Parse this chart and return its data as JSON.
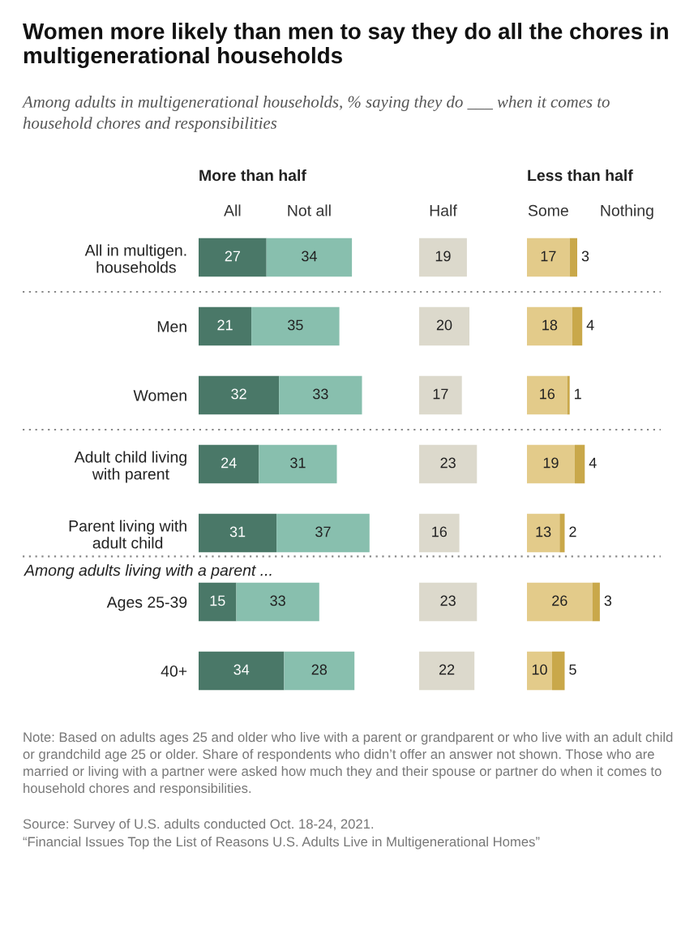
{
  "chart_data": [
    {
      "type": "bar",
      "orientation": "horizontal",
      "stacked": true,
      "data_labels": true,
      "tick_labels": "y",
      "title": "Women more likely than men to say they do all the chores in multigenerational households",
      "subtitle": "Among adults in multigenerational households, % saying they do ___ when it comes to household chores and responsibilities",
      "legend_title": "More than half",
      "categories": [
        "All in multigen.\nhouseholds",
        "Men",
        "Women",
        "Adult child living\nwith parent",
        "Parent living with\nadult child",
        "Ages 25-39",
        "40+"
      ],
      "series": [
        {
          "name": "All",
          "color": "#4a7868",
          "values": [
            27,
            21,
            32,
            24,
            31,
            15,
            34
          ]
        },
        {
          "name": "Not all",
          "color": "#88bfae",
          "values": [
            34,
            35,
            33,
            31,
            37,
            33,
            28
          ]
        }
      ],
      "annotations": [
        "Among adults living with a parent ...",
        "Note: Based on adults ages 25 and older who live with a parent or grandparent or who live with an adult child or grandchild age 25 or older. Share of respondents who didn’t offer an answer not shown. Those who are married or living with a partner were asked how much they and their spouse or partner do when it comes to household chores and responsibilities.",
        "Source: Survey of U.S. adults conducted Oct. 18-24, 2021.",
        "“Financial Issues Top the List of Reasons U.S. Adults Live in Multigenerational Homes”"
      ]
    },
    {
      "type": "bar",
      "orientation": "horizontal",
      "stacked": true,
      "data_labels": true,
      "tick_labels": false,
      "series": [
        {
          "name": "Half",
          "color": "#dcd9cc",
          "values": [
            19,
            20,
            17,
            23,
            16,
            23,
            22
          ]
        }
      ]
    },
    {
      "type": "bar",
      "orientation": "horizontal",
      "stacked": true,
      "data_labels": true,
      "tick_labels": false,
      "legend_title": "Less than half",
      "series": [
        {
          "name": "Some",
          "color": "#e3cb8a",
          "values": [
            17,
            18,
            16,
            19,
            13,
            26,
            10
          ]
        },
        {
          "name": "Nothing",
          "color": "#c9a84a",
          "values": [
            3,
            4,
            1,
            4,
            2,
            3,
            5
          ]
        }
      ]
    }
  ]
}
